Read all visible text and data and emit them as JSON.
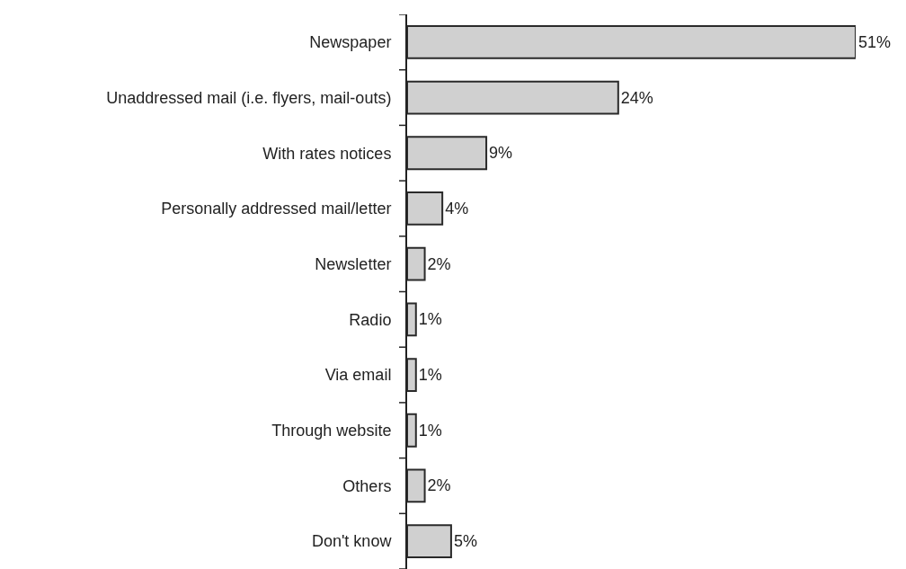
{
  "chart_data": {
    "type": "bar",
    "orientation": "horizontal",
    "categories": [
      "Newspaper",
      "Unaddressed mail (i.e. flyers, mail-outs)",
      "With rates notices",
      "Personally addressed mail/letter",
      "Newsletter",
      "Radio",
      "Via email",
      "Through website",
      "Others",
      "Don't know"
    ],
    "values": [
      51,
      24,
      9,
      4,
      2,
      1,
      1,
      1,
      2,
      5
    ],
    "value_labels": [
      "51%",
      "24%",
      "9%",
      "4%",
      "2%",
      "1%",
      "1%",
      "1%",
      "2%",
      "5%"
    ],
    "color": "#d0d0d0",
    "tick_labels": "y"
  }
}
